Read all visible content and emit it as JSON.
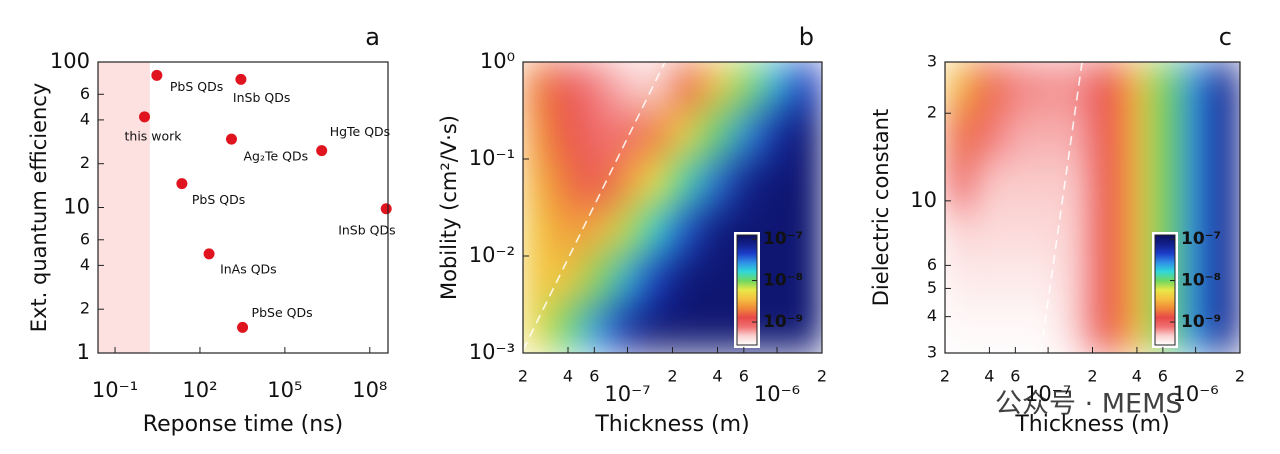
{
  "chart_data": [
    {
      "type": "scatter",
      "panel_label": "a",
      "xlabel": "Reponse time (ns)",
      "ylabel": "Ext. quantum efficiency",
      "xscale": "log",
      "yscale": "log",
      "xlim": [
        0.025,
        440000000
      ],
      "ylim": [
        1,
        100
      ],
      "xticks": [
        {
          "value": 0.1,
          "label": "10⁻¹"
        },
        {
          "value": 100,
          "label": "10²"
        },
        {
          "value": 100000,
          "label": "10⁵"
        },
        {
          "value": 100000000,
          "label": "10⁸"
        }
      ],
      "yticks": [
        1,
        2,
        4,
        6,
        10,
        {
          "value": 20,
          "label": "2"
        },
        {
          "value": 40,
          "label": "4"
        },
        {
          "value": 60,
          "label": "6"
        },
        100
      ],
      "x": [
        1.1,
        3,
        2800,
        1300,
        2000000,
        23,
        380000000,
        210,
        3200
      ],
      "values": [
        42,
        81,
        76,
        29.5,
        24.6,
        14.6,
        9.8,
        4.8,
        1.5
      ],
      "point_labels": [
        "this work",
        "PbS QDs",
        "InSb QDs",
        "Ag₂Te QDs",
        "HgTe QDs",
        "PbS QDs",
        "InSb QDs",
        "InAs QDs",
        "PbSe QDs"
      ],
      "color": "#e0141e",
      "highlight": {
        "x": [
          0.025,
          1.7
        ],
        "color": "#fde1e1"
      }
    },
    {
      "type": "heatmap",
      "panel_label": "b",
      "xlabel": "Thickness (m)",
      "ylabel": "Mobility (cm²/V·s)",
      "xscale": "log",
      "yscale": "log",
      "xlim": [
        2e-08,
        2e-06
      ],
      "ylim": [
        0.001,
        1
      ],
      "xticks": [
        {
          "value": 2e-08,
          "label": "2"
        },
        {
          "value": 4e-08,
          "label": "4"
        },
        {
          "value": 6e-08,
          "label": "6"
        },
        {
          "value": 1e-07,
          "label": "10⁻⁷"
        },
        {
          "value": 2e-07,
          "label": "2"
        },
        {
          "value": 4e-07,
          "label": "4"
        },
        {
          "value": 6e-07,
          "label": "6"
        },
        {
          "value": 1e-06,
          "label": "10⁻⁶"
        },
        {
          "value": 2e-06,
          "label": "2"
        }
      ],
      "yticks": [
        {
          "value": 0.001,
          "label": "10⁻³"
        },
        {
          "value": 0.01,
          "label": "10⁻²"
        },
        {
          "value": 0.1,
          "label": "10⁻¹"
        },
        {
          "value": 1,
          "label": "10⁰"
        }
      ],
      "x": [
        2.5e-08,
        4e-08,
        6.3e-08,
        1e-07,
        1.6e-07,
        2.5e-07,
        4e-07,
        6.3e-07,
        1e-06,
        1.6e-06
      ],
      "y": [
        0.56,
        0.18,
        0.056,
        0.018,
        0.0056,
        0.0018
      ],
      "z": [
        [
          2e-09,
          1.1e-09,
          7.1e-10,
          5e-10,
          4.5e-10,
          1.6e-09,
          3.8e-09,
          8.9e-09,
          2.1e-08,
          4.9e-08
        ],
        [
          2.5e-09,
          1.4e-09,
          7.9e-10,
          7.9e-10,
          2e-09,
          4.8e-09,
          1.1e-08,
          2.6e-08,
          6.2e-08,
          1e-07
        ],
        [
          3.2e-09,
          1.8e-09,
          1.1e-09,
          2.5e-09,
          5.9e-09,
          1.4e-08,
          3.2e-08,
          7.6e-08,
          1e-07,
          1e-07
        ],
        [
          4e-09,
          2.5e-09,
          3.1e-09,
          7.2e-09,
          1.7e-08,
          4e-08,
          9.3e-08,
          1e-07,
          1e-07,
          1e-07
        ],
        [
          4e-09,
          3.8e-09,
          8.9e-09,
          2.1e-08,
          4.9e-08,
          1e-07,
          1e-07,
          1e-07,
          1e-07,
          1e-07
        ],
        [
          4.8e-09,
          1.1e-08,
          2.6e-08,
          6.2e-08,
          1e-07,
          1e-07,
          1e-07,
          1e-07,
          1e-07,
          1e-07
        ]
      ],
      "clim": [
        2.8e-10,
        1.25e-07
      ],
      "cticks": [
        {
          "value": 1e-09,
          "label": "10⁻⁹"
        },
        {
          "value": 1e-08,
          "label": "10⁻⁸"
        },
        {
          "value": 1e-07,
          "label": "10⁻⁷"
        }
      ],
      "colormap": [
        "#ffffff",
        "#fbd0d0",
        "#f07070",
        "#e84848",
        "#f08a3a",
        "#f5c040",
        "#e8e848",
        "#70d860",
        "#30d8d8",
        "#2f8fe8",
        "#1c3cc8",
        "#12208a",
        "#0a0f60"
      ],
      "guide_line": {
        "x": [
          2e-08,
          1.78e-07
        ],
        "y": [
          0.00107,
          1
        ],
        "color": "#ffffff"
      }
    },
    {
      "type": "heatmap",
      "panel_label": "c",
      "xlabel": "Thickness (m)",
      "ylabel": "Dielectric constant",
      "xscale": "log",
      "yscale": "log",
      "xlim": [
        2e-08,
        2e-06
      ],
      "ylim": [
        3,
        30
      ],
      "xticks": [
        {
          "value": 2e-08,
          "label": "2"
        },
        {
          "value": 4e-08,
          "label": "4"
        },
        {
          "value": 6e-08,
          "label": "6"
        },
        {
          "value": 1e-07,
          "label": "10⁻⁷"
        },
        {
          "value": 2e-07,
          "label": "2"
        },
        {
          "value": 4e-07,
          "label": "4"
        },
        {
          "value": 6e-07,
          "label": "6"
        },
        {
          "value": 1e-06,
          "label": "10⁻⁶"
        },
        {
          "value": 2e-06,
          "label": "2"
        }
      ],
      "yticks": [
        3,
        4,
        5,
        6,
        10,
        {
          "value": 20,
          "label": "2"
        },
        {
          "value": 30,
          "label": "3"
        }
      ],
      "x": [
        2.5e-08,
        4e-08,
        6.3e-08,
        1e-07,
        1.6e-07,
        2.5e-07,
        4e-07,
        6.3e-07,
        1e-06,
        1.6e-06
      ],
      "y": [
        24.8,
        16.9,
        11.5,
        7.83,
        5.33,
        3.63
      ],
      "z": [
        [
          3.5e-09,
          1.6e-09,
          7.1e-10,
          6.6e-10,
          6.6e-10,
          1.3e-09,
          3.5e-09,
          9.8e-09,
          2.7e-08,
          7.4e-08
        ],
        [
          1.7e-09,
          7.9e-10,
          5.6e-10,
          5.6e-10,
          5.6e-10,
          1.3e-09,
          3.5e-09,
          9.8e-09,
          2.7e-08,
          7.4e-08
        ],
        [
          8.7e-10,
          4.8e-10,
          4.8e-10,
          4.8e-10,
          4.8e-10,
          1.3e-09,
          3.5e-09,
          9.8e-09,
          2.7e-08,
          7.4e-08
        ],
        [
          4.4e-10,
          4.2e-10,
          4.2e-10,
          4.2e-10,
          4.7e-10,
          1.3e-09,
          3.5e-09,
          9.8e-09,
          2.7e-08,
          7.4e-08
        ],
        [
          3.5e-10,
          3.5e-10,
          3.5e-10,
          3.5e-10,
          4.7e-10,
          1.3e-09,
          3.5e-09,
          9.8e-09,
          2.7e-08,
          7.4e-08
        ],
        [
          3e-10,
          3e-10,
          3e-10,
          3e-10,
          4.7e-10,
          1.3e-09,
          3.5e-09,
          9.8e-09,
          2.7e-08,
          7.4e-08
        ]
      ],
      "clim": [
        2.8e-10,
        1.25e-07
      ],
      "cticks": [
        {
          "value": 1e-09,
          "label": "10⁻⁹"
        },
        {
          "value": 1e-08,
          "label": "10⁻⁸"
        },
        {
          "value": 1e-07,
          "label": "10⁻⁷"
        }
      ],
      "colormap": [
        "#ffffff",
        "#fbd0d0",
        "#f07070",
        "#e84848",
        "#f08a3a",
        "#f5c040",
        "#e8e848",
        "#70d860",
        "#30d8d8",
        "#2f8fe8",
        "#1c3cc8",
        "#12208a",
        "#0a0f60"
      ],
      "guide_line": {
        "x": [
          8.9e-08,
          1.7e-07
        ],
        "y": [
          3,
          30
        ],
        "color": "#ffffff"
      }
    }
  ],
  "watermark": "公众号 · MEMS"
}
